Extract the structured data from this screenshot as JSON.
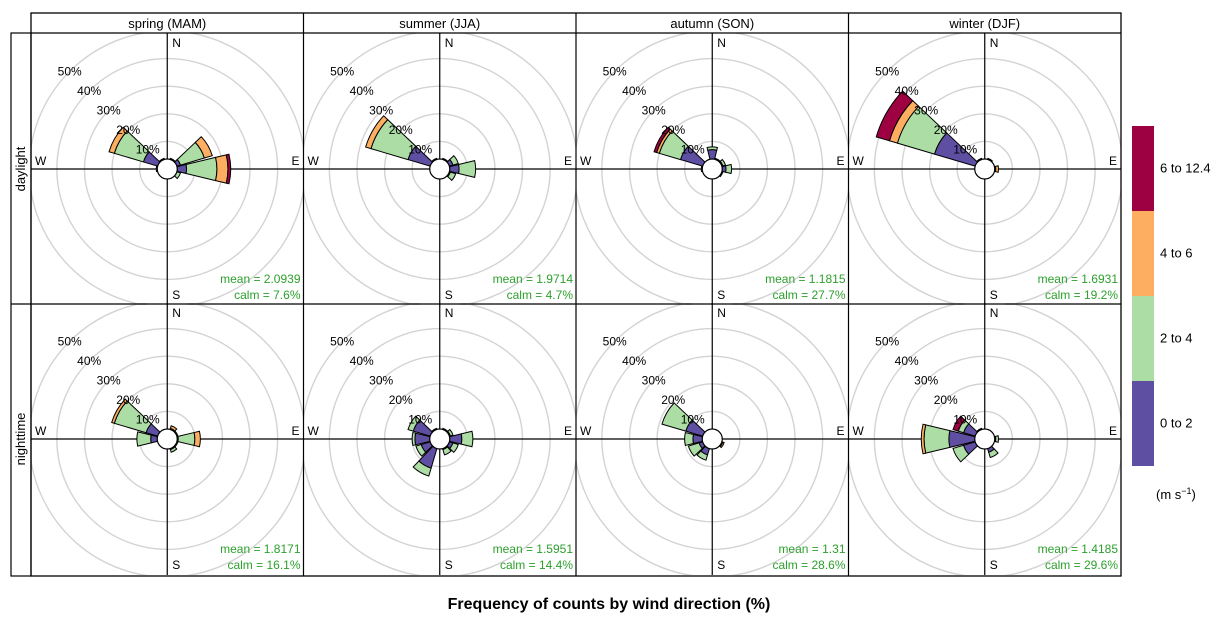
{
  "figure": {
    "title": "Frequency of counts by wind direction (%)",
    "row_labels": [
      "daylight",
      "nighttime"
    ],
    "column_labels": [
      "spring (MAM)",
      "summer (JJA)",
      "autumn (SON)",
      "winter (DJF)"
    ]
  },
  "legend": {
    "unit_prefix": "(m s",
    "unit_exp": "−1",
    "unit_suffix": ")",
    "items": [
      {
        "label": "6 to 12.4",
        "color": "#9e0142"
      },
      {
        "label": "4 to 6",
        "color": "#fdae61"
      },
      {
        "label": "2 to 4",
        "color": "#abdda4"
      },
      {
        "label": "0 to 2",
        "color": "#5e4fa2"
      }
    ]
  },
  "compass": {
    "N": "N",
    "E": "E",
    "S": "S",
    "W": "W"
  },
  "chart_data": {
    "type": "windrose",
    "directions_deg": [
      0,
      30,
      60,
      90,
      120,
      150,
      180,
      210,
      240,
      270,
      300,
      330
    ],
    "speed_bins": [
      "0 to 2",
      "2 to 4",
      "4 to 6",
      "6 to 12.4"
    ],
    "radial_ticks": [
      10,
      20,
      30,
      40,
      50
    ],
    "radial_tick_labels": [
      "10%",
      "20%",
      "30%",
      "40%",
      "50%"
    ],
    "radial_max": 50,
    "panels": [
      {
        "row": "daylight",
        "season": "spring (MAM)",
        "mean_text": "mean = 2.0939",
        "calm_text": "calm = 7.6%",
        "data": [
          [
            2,
            0.5,
            0,
            0
          ],
          [
            3,
            1,
            0,
            0
          ],
          [
            5,
            9,
            3,
            0
          ],
          [
            7,
            11,
            4,
            1
          ],
          [
            3,
            2,
            0,
            0
          ],
          [
            2,
            0,
            0,
            0
          ],
          [
            1,
            0,
            0,
            0
          ],
          [
            1,
            0,
            0,
            0
          ],
          [
            2,
            1,
            0,
            0
          ],
          [
            2,
            2,
            0,
            0
          ],
          [
            9,
            11,
            2,
            0
          ],
          [
            3,
            1,
            0,
            0
          ]
        ]
      },
      {
        "row": "daylight",
        "season": "summer (JJA)",
        "mean_text": "mean = 1.9714",
        "calm_text": "calm = 4.7%",
        "data": [
          [
            2,
            0,
            0,
            0
          ],
          [
            3,
            1,
            0,
            0
          ],
          [
            5,
            2,
            0,
            0
          ],
          [
            7,
            6,
            0,
            0
          ],
          [
            4,
            2,
            0,
            0
          ],
          [
            2,
            0,
            0,
            0
          ],
          [
            1,
            0,
            0,
            0
          ],
          [
            1,
            0,
            0,
            0
          ],
          [
            2,
            0,
            0,
            0
          ],
          [
            3,
            0,
            0,
            0
          ],
          [
            12,
            14,
            2,
            0
          ],
          [
            3,
            1,
            0,
            0
          ]
        ]
      },
      {
        "row": "daylight",
        "season": "autumn (SON)",
        "mean_text": "mean = 1.1815",
        "calm_text": "calm = 27.7%",
        "data": [
          [
            7,
            1,
            0,
            0
          ],
          [
            3,
            1,
            0,
            0
          ],
          [
            4,
            1,
            0,
            0
          ],
          [
            5,
            2,
            0,
            0
          ],
          [
            3,
            1,
            0,
            0
          ],
          [
            1,
            0,
            0,
            0
          ],
          [
            1,
            0,
            0,
            0
          ],
          [
            1,
            0,
            0,
            0
          ],
          [
            2,
            0,
            0,
            0
          ],
          [
            3,
            1,
            0,
            0
          ],
          [
            12,
            8,
            1,
            1
          ],
          [
            3,
            0,
            0,
            0
          ]
        ]
      },
      {
        "row": "daylight",
        "season": "winter (DJF)",
        "mean_text": "mean = 1.6931",
        "calm_text": "calm = 19.2%",
        "data": [
          [
            2,
            0,
            0,
            0
          ],
          [
            4,
            0,
            0,
            0
          ],
          [
            3,
            0,
            0,
            0
          ],
          [
            3,
            1,
            1,
            0
          ],
          [
            3,
            0,
            0,
            0
          ],
          [
            2,
            0,
            0,
            0
          ],
          [
            1,
            0,
            0,
            0
          ],
          [
            1,
            0,
            0,
            0
          ],
          [
            2,
            0,
            0,
            0
          ],
          [
            3,
            0,
            0,
            0
          ],
          [
            19,
            14,
            3,
            5
          ],
          [
            4,
            0,
            0,
            0
          ]
        ]
      },
      {
        "row": "nighttime",
        "season": "spring (MAM)",
        "mean_text": "mean = 1.8171",
        "calm_text": "calm = 16.1%",
        "data": [
          [
            2,
            0,
            0,
            0
          ],
          [
            3,
            1,
            1,
            0
          ],
          [
            3,
            1,
            0,
            0
          ],
          [
            4,
            6,
            2,
            0
          ],
          [
            3,
            1,
            0,
            0
          ],
          [
            4,
            1,
            0,
            0
          ],
          [
            2,
            0,
            0,
            0
          ],
          [
            2,
            0,
            0,
            0
          ],
          [
            3,
            0,
            0,
            0
          ],
          [
            6,
            5,
            0,
            0
          ],
          [
            8,
            12,
            1,
            0
          ],
          [
            3,
            0,
            0,
            0
          ]
        ]
      },
      {
        "row": "nighttime",
        "season": "summer (JJA)",
        "mean_text": "mean = 1.5951",
        "calm_text": "calm = 14.4%",
        "data": [
          [
            3,
            0,
            0,
            0
          ],
          [
            3,
            1,
            0,
            0
          ],
          [
            4,
            1,
            0,
            0
          ],
          [
            8,
            4,
            0,
            0
          ],
          [
            5,
            2,
            0,
            0
          ],
          [
            4,
            2,
            0,
            0
          ],
          [
            2,
            0,
            0,
            0
          ],
          [
            11,
            3,
            0,
            0
          ],
          [
            7,
            2,
            0,
            0
          ],
          [
            9,
            1,
            0,
            0
          ],
          [
            10,
            2,
            0,
            0
          ],
          [
            4,
            0,
            0,
            0
          ]
        ]
      },
      {
        "row": "nighttime",
        "season": "autumn (SON)",
        "mean_text": "mean = 1.31",
        "calm_text": "calm = 28.6%",
        "data": [
          [
            2,
            0,
            0,
            0
          ],
          [
            2,
            0,
            0,
            0
          ],
          [
            2,
            1,
            0,
            0
          ],
          [
            3,
            0,
            0,
            0
          ],
          [
            3,
            1,
            0.5,
            0
          ],
          [
            1,
            0,
            0,
            0
          ],
          [
            1,
            0,
            0,
            0
          ],
          [
            6,
            2,
            0,
            0
          ],
          [
            5,
            4,
            0,
            0
          ],
          [
            7,
            3,
            0,
            0
          ],
          [
            10,
            9,
            0,
            0
          ],
          [
            3,
            0,
            0,
            0
          ]
        ]
      },
      {
        "row": "nighttime",
        "season": "winter (DJF)",
        "mean_text": "mean = 1.4185",
        "calm_text": "calm = 29.6%",
        "data": [
          [
            2,
            0,
            0,
            0
          ],
          [
            2,
            0,
            0,
            0
          ],
          [
            3,
            0,
            0,
            0
          ],
          [
            4,
            1,
            0,
            0
          ],
          [
            3,
            0,
            0,
            0
          ],
          [
            5,
            2,
            0,
            0
          ],
          [
            1,
            0,
            0,
            0
          ],
          [
            2,
            0,
            0,
            0
          ],
          [
            8,
            4,
            0,
            0
          ],
          [
            13,
            9,
            1,
            0
          ],
          [
            8,
            2,
            0,
            2
          ],
          [
            4,
            0,
            0,
            0
          ]
        ]
      }
    ]
  }
}
